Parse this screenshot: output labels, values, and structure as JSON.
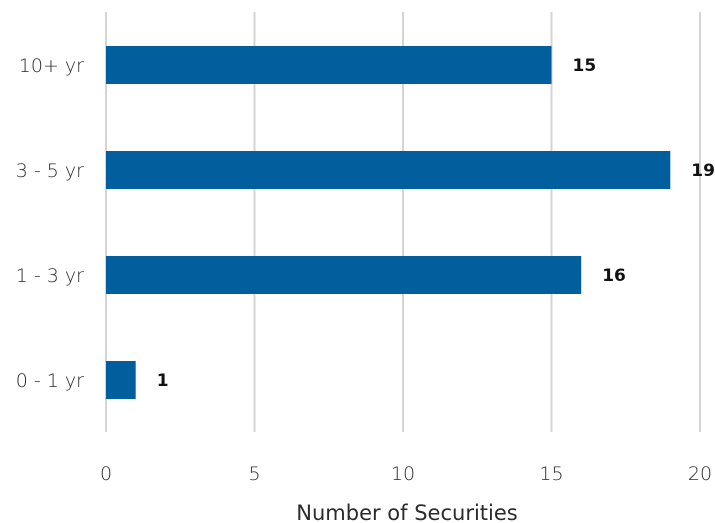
{
  "chart_data": {
    "type": "bar",
    "orientation": "horizontal",
    "categories": [
      "10+ yr",
      "3 - 5 yr",
      "1 - 3 yr",
      "0 - 1 yr"
    ],
    "values": [
      15,
      19,
      16,
      1
    ],
    "data_labels": [
      "15",
      "19",
      "16",
      "1"
    ],
    "xlabel": "Number of Securities",
    "ylabel": "",
    "title": "",
    "xlim": [
      0,
      20
    ],
    "xticks": [
      0,
      5,
      10,
      15,
      20
    ],
    "xtick_labels": [
      "0",
      "5",
      "10",
      "15",
      "20"
    ],
    "grid": "vertical",
    "legend": "none",
    "bar_color": "#035e9e",
    "grid_color": "#d4d4d4"
  }
}
